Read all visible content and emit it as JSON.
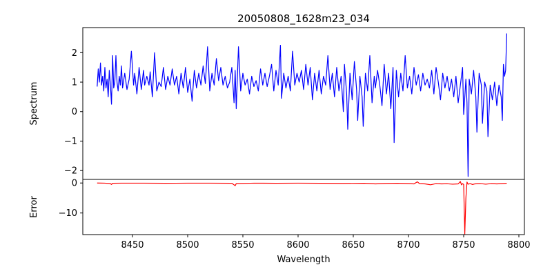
{
  "chart_data": [
    {
      "type": "line",
      "title": "20050808_1628m23_034",
      "xlabel": "",
      "ylabel": "Spectrum",
      "xlim": [
        8405,
        8805
      ],
      "ylim": [
        -2.3,
        2.85
      ],
      "yticks": [
        2,
        1,
        0,
        -1,
        -2
      ],
      "ytick_labels": [
        "2",
        "1",
        "0",
        "−1",
        "−2"
      ],
      "grid": false,
      "series": [
        {
          "color": "#0000ff",
          "points": [
            [
              8418,
              0.85
            ],
            [
              8419,
              1.45
            ],
            [
              8420,
              1.0
            ],
            [
              8421,
              1.65
            ],
            [
              8422,
              0.9
            ],
            [
              8423,
              1.2
            ],
            [
              8424,
              0.7
            ],
            [
              8425,
              1.5
            ],
            [
              8426,
              0.8
            ],
            [
              8427,
              1.1
            ],
            [
              8428,
              0.5
            ],
            [
              8429,
              1.4
            ],
            [
              8430,
              0.9
            ],
            [
              8431,
              0.25
            ],
            [
              8432,
              1.9
            ],
            [
              8433,
              0.8
            ],
            [
              8434,
              1.0
            ],
            [
              8435,
              1.9
            ],
            [
              8436,
              1.0
            ],
            [
              8437,
              0.7
            ],
            [
              8438,
              1.2
            ],
            [
              8439,
              0.9
            ],
            [
              8440,
              1.55
            ],
            [
              8441,
              0.8
            ],
            [
              8443,
              1.3
            ],
            [
              8445,
              0.75
            ],
            [
              8447,
              1.1
            ],
            [
              8449,
              2.05
            ],
            [
              8451,
              0.9
            ],
            [
              8452,
              1.3
            ],
            [
              8454,
              0.6
            ],
            [
              8456,
              1.5
            ],
            [
              8458,
              0.75
            ],
            [
              8460,
              1.4
            ],
            [
              8461,
              0.9
            ],
            [
              8463,
              1.2
            ],
            [
              8465,
              0.9
            ],
            [
              8466,
              1.35
            ],
            [
              8468,
              0.5
            ],
            [
              8470,
              2.0
            ],
            [
              8472,
              0.7
            ],
            [
              8474,
              1.0
            ],
            [
              8476,
              0.85
            ],
            [
              8478,
              1.5
            ],
            [
              8480,
              0.75
            ],
            [
              8482,
              1.2
            ],
            [
              8484,
              0.9
            ],
            [
              8486,
              1.45
            ],
            [
              8488,
              0.9
            ],
            [
              8490,
              1.2
            ],
            [
              8492,
              0.6
            ],
            [
              8494,
              1.3
            ],
            [
              8496,
              0.8
            ],
            [
              8498,
              1.5
            ],
            [
              8500,
              0.65
            ],
            [
              8502,
              1.1
            ],
            [
              8504,
              0.35
            ],
            [
              8506,
              1.4
            ],
            [
              8508,
              0.8
            ],
            [
              8510,
              1.3
            ],
            [
              8512,
              0.9
            ],
            [
              8514,
              1.55
            ],
            [
              8516,
              0.95
            ],
            [
              8518,
              2.2
            ],
            [
              8520,
              0.7
            ],
            [
              8522,
              1.3
            ],
            [
              8524,
              0.9
            ],
            [
              8526,
              1.8
            ],
            [
              8528,
              1.05
            ],
            [
              8530,
              1.5
            ],
            [
              8532,
              0.9
            ],
            [
              8534,
              1.2
            ],
            [
              8536,
              0.8
            ],
            [
              8538,
              1.0
            ],
            [
              8540,
              1.5
            ],
            [
              8542,
              0.3
            ],
            [
              8543,
              1.4
            ],
            [
              8544,
              0.1
            ],
            [
              8546,
              2.2
            ],
            [
              8548,
              0.7
            ],
            [
              8550,
              1.3
            ],
            [
              8552,
              0.9
            ],
            [
              8554,
              1.1
            ],
            [
              8556,
              0.6
            ],
            [
              8558,
              1.2
            ],
            [
              8560,
              0.85
            ],
            [
              8562,
              1.05
            ],
            [
              8564,
              0.7
            ],
            [
              8566,
              1.45
            ],
            [
              8568,
              0.9
            ],
            [
              8570,
              1.3
            ],
            [
              8572,
              0.85
            ],
            [
              8574,
              1.2
            ],
            [
              8576,
              1.6
            ],
            [
              8578,
              0.7
            ],
            [
              8580,
              1.4
            ],
            [
              8582,
              0.9
            ],
            [
              8584,
              2.25
            ],
            [
              8585,
              0.45
            ],
            [
              8587,
              1.3
            ],
            [
              8589,
              0.8
            ],
            [
              8591,
              1.2
            ],
            [
              8593,
              0.7
            ],
            [
              8595,
              2.05
            ],
            [
              8597,
              0.9
            ],
            [
              8599,
              1.3
            ],
            [
              8601,
              1.0
            ],
            [
              8603,
              1.4
            ],
            [
              8605,
              0.75
            ],
            [
              8607,
              1.6
            ],
            [
              8609,
              0.9
            ],
            [
              8611,
              1.5
            ],
            [
              8613,
              0.4
            ],
            [
              8615,
              1.3
            ],
            [
              8617,
              0.7
            ],
            [
              8619,
              1.4
            ],
            [
              8621,
              0.6
            ],
            [
              8623,
              1.2
            ],
            [
              8625,
              0.9
            ],
            [
              8627,
              1.9
            ],
            [
              8629,
              0.75
            ],
            [
              8631,
              1.3
            ],
            [
              8633,
              0.5
            ],
            [
              8635,
              1.5
            ],
            [
              8637,
              0.7
            ],
            [
              8639,
              1.2
            ],
            [
              8641,
              0.0
            ],
            [
              8642,
              1.6
            ],
            [
              8644,
              0.6
            ],
            [
              8645,
              -0.6
            ],
            [
              8647,
              1.3
            ],
            [
              8649,
              0.4
            ],
            [
              8651,
              1.7
            ],
            [
              8653,
              0.75
            ],
            [
              8654,
              -0.3
            ],
            [
              8656,
              1.2
            ],
            [
              8658,
              0.5
            ],
            [
              8659,
              -0.5
            ],
            [
              8661,
              1.3
            ],
            [
              8663,
              0.7
            ],
            [
              8665,
              1.9
            ],
            [
              8667,
              0.3
            ],
            [
              8669,
              1.2
            ],
            [
              8670,
              0.8
            ],
            [
              8672,
              1.4
            ],
            [
              8674,
              0.9
            ],
            [
              8676,
              0.2
            ],
            [
              8678,
              1.6
            ],
            [
              8680,
              0.6
            ],
            [
              8682,
              1.3
            ],
            [
              8684,
              0.1
            ],
            [
              8686,
              1.5
            ],
            [
              8687,
              -1.05
            ],
            [
              8689,
              1.4
            ],
            [
              8691,
              0.5
            ],
            [
              8693,
              1.3
            ],
            [
              8695,
              0.7
            ],
            [
              8697,
              1.9
            ],
            [
              8699,
              0.8
            ],
            [
              8701,
              1.2
            ],
            [
              8703,
              0.6
            ],
            [
              8705,
              1.5
            ],
            [
              8707,
              0.9
            ],
            [
              8709,
              1.25
            ],
            [
              8711,
              0.7
            ],
            [
              8713,
              1.3
            ],
            [
              8715,
              0.9
            ],
            [
              8717,
              1.1
            ],
            [
              8719,
              0.8
            ],
            [
              8721,
              1.4
            ],
            [
              8723,
              0.6
            ],
            [
              8725,
              1.5
            ],
            [
              8727,
              1.0
            ],
            [
              8729,
              0.4
            ],
            [
              8731,
              1.3
            ],
            [
              8733,
              0.8
            ],
            [
              8735,
              1.2
            ],
            [
              8737,
              0.7
            ],
            [
              8739,
              1.1
            ],
            [
              8741,
              0.5
            ],
            [
              8743,
              1.2
            ],
            [
              8745,
              0.3
            ],
            [
              8747,
              0.9
            ],
            [
              8749,
              1.5
            ],
            [
              8750,
              -0.1
            ],
            [
              8752,
              1.1
            ],
            [
              8753,
              0.3
            ],
            [
              8754,
              -2.2
            ],
            [
              8755,
              1.1
            ],
            [
              8757,
              0.6
            ],
            [
              8759,
              1.4
            ],
            [
              8761,
              0.5
            ],
            [
              8762,
              -0.7
            ],
            [
              8764,
              1.3
            ],
            [
              8766,
              0.9
            ],
            [
              8767,
              -0.4
            ],
            [
              8769,
              1.0
            ],
            [
              8771,
              0.7
            ],
            [
              8772,
              -0.85
            ],
            [
              8774,
              0.9
            ],
            [
              8776,
              0.4
            ],
            [
              8778,
              1.0
            ],
            [
              8780,
              0.2
            ],
            [
              8782,
              0.9
            ],
            [
              8784,
              0.5
            ],
            [
              8785,
              -0.3
            ],
            [
              8786,
              1.6
            ],
            [
              8787,
              1.2
            ],
            [
              8788,
              1.4
            ],
            [
              8789,
              2.65
            ]
          ]
        }
      ]
    },
    {
      "type": "line",
      "xlabel": "Wavelength",
      "ylabel": "Error",
      "xlim": [
        8405,
        8805
      ],
      "ylim": [
        -17.2,
        1.2
      ],
      "xticks": [
        8450,
        8500,
        8550,
        8600,
        8650,
        8700,
        8750,
        8800
      ],
      "xtick_labels": [
        "8450",
        "8500",
        "8550",
        "8600",
        "8650",
        "8700",
        "8750",
        "8800"
      ],
      "yticks": [
        0,
        -10
      ],
      "ytick_labels": [
        "0",
        "−10"
      ],
      "grid": false,
      "series": [
        {
          "color": "#ff0000",
          "points": [
            [
              8418,
              0.0
            ],
            [
              8425,
              -0.05
            ],
            [
              8430,
              -0.2
            ],
            [
              8431,
              -0.5
            ],
            [
              8432,
              -0.1
            ],
            [
              8440,
              -0.05
            ],
            [
              8460,
              -0.05
            ],
            [
              8480,
              -0.1
            ],
            [
              8500,
              -0.05
            ],
            [
              8520,
              -0.05
            ],
            [
              8540,
              -0.1
            ],
            [
              8542,
              -0.6
            ],
            [
              8543,
              -0.9
            ],
            [
              8544,
              -0.2
            ],
            [
              8560,
              -0.05
            ],
            [
              8580,
              -0.1
            ],
            [
              8600,
              -0.05
            ],
            [
              8620,
              -0.1
            ],
            [
              8640,
              -0.15
            ],
            [
              8660,
              -0.1
            ],
            [
              8670,
              -0.3
            ],
            [
              8680,
              -0.15
            ],
            [
              8690,
              -0.1
            ],
            [
              8700,
              -0.2
            ],
            [
              8705,
              -0.3
            ],
            [
              8708,
              0.4
            ],
            [
              8710,
              -0.2
            ],
            [
              8715,
              -0.3
            ],
            [
              8720,
              -0.6
            ],
            [
              8725,
              -0.2
            ],
            [
              8730,
              -0.3
            ],
            [
              8735,
              -0.25
            ],
            [
              8740,
              -0.4
            ],
            [
              8745,
              -0.3
            ],
            [
              8747,
              0.5
            ],
            [
              8748,
              -0.6
            ],
            [
              8749,
              -0.2
            ],
            [
              8750,
              -0.5
            ],
            [
              8751,
              -17.0
            ],
            [
              8752,
              -5.0
            ],
            [
              8753,
              0.3
            ],
            [
              8754,
              -0.4
            ],
            [
              8756,
              -0.2
            ],
            [
              8758,
              -0.5
            ],
            [
              8760,
              -0.3
            ],
            [
              8765,
              -0.2
            ],
            [
              8770,
              -0.4
            ],
            [
              8775,
              -0.2
            ],
            [
              8780,
              -0.3
            ],
            [
              8785,
              -0.2
            ],
            [
              8789,
              -0.1
            ]
          ]
        }
      ]
    }
  ]
}
